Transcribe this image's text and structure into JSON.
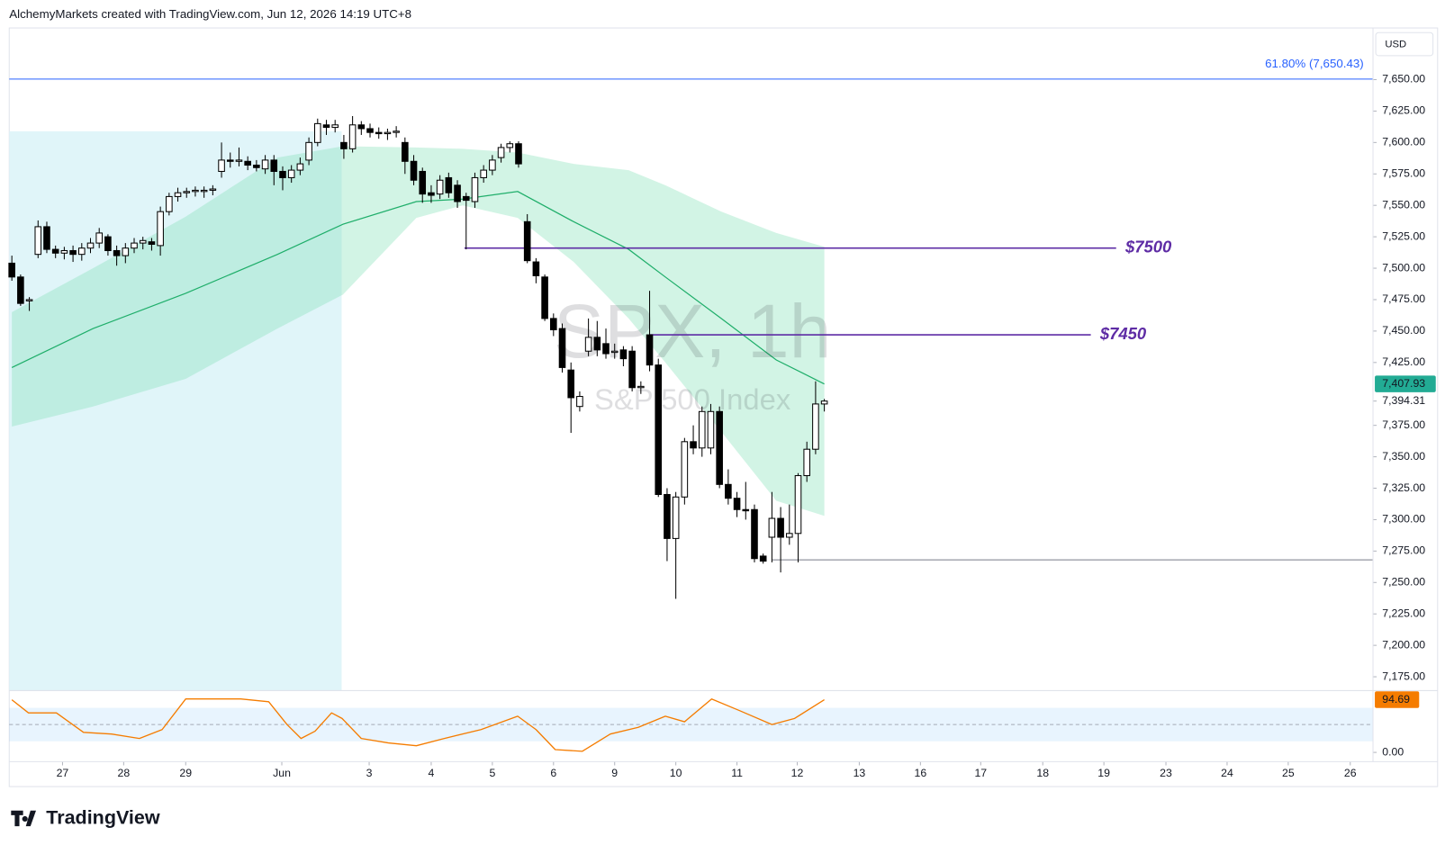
{
  "header": "AlchemyMarkets created with TradingView.com, Jun 12, 2026 14:19 UTC+8",
  "brand": "TradingView",
  "currency": "USD",
  "watermark": {
    "symbol": "SPX, 1h",
    "name": "S&P 500 Index"
  },
  "chart_data": {
    "type": "candlestick",
    "xlim": [
      -0.3,
      155.8
    ],
    "xticks": [
      {
        "value": 5.8,
        "label": "27"
      },
      {
        "value": 12.8,
        "label": "28"
      },
      {
        "value": 19.9,
        "label": "29"
      },
      {
        "value": 30.9,
        "label": "Jun"
      },
      {
        "value": 40.9,
        "label": "3"
      },
      {
        "value": 48.0,
        "label": "4"
      },
      {
        "value": 55.0,
        "label": "5"
      },
      {
        "value": 62.0,
        "label": "6"
      },
      {
        "value": 69.0,
        "label": "9"
      },
      {
        "value": 76.0,
        "label": "10"
      },
      {
        "value": 83.0,
        "label": "11"
      },
      {
        "value": 89.9,
        "label": "12"
      },
      {
        "value": 97.0,
        "label": "13"
      },
      {
        "value": 104.0,
        "label": "16"
      },
      {
        "value": 110.9,
        "label": "17"
      },
      {
        "value": 118.0,
        "label": "18"
      },
      {
        "value": 125.0,
        "label": "19"
      },
      {
        "value": 132.1,
        "label": "23"
      },
      {
        "value": 139.1,
        "label": "24"
      },
      {
        "value": 146.1,
        "label": "25"
      },
      {
        "value": 153.2,
        "label": "26"
      }
    ],
    "ylim": [
      7164,
      7691.1
    ],
    "yticks": [
      {
        "value": 7175,
        "label": "7,175.00"
      },
      {
        "value": 7200,
        "label": "7,200.00"
      },
      {
        "value": 7225,
        "label": "7,225.00"
      },
      {
        "value": 7250,
        "label": "7,250.00"
      },
      {
        "value": 7275,
        "label": "7,275.00"
      },
      {
        "value": 7300,
        "label": "7,300.00"
      },
      {
        "value": 7325,
        "label": "7,325.00"
      },
      {
        "value": 7350,
        "label": "7,350.00"
      },
      {
        "value": 7375,
        "label": "7,375.00"
      },
      {
        "value": 7425,
        "label": "7,425.00"
      },
      {
        "value": 7450,
        "label": "7,450.00"
      },
      {
        "value": 7475,
        "label": "7,475.00"
      },
      {
        "value": 7500,
        "label": "7,500.00"
      },
      {
        "value": 7525,
        "label": "7,525.00"
      },
      {
        "value": 7550,
        "label": "7,550.00"
      },
      {
        "value": 7575,
        "label": "7,575.00"
      },
      {
        "value": 7600,
        "label": "7,600.00"
      },
      {
        "value": 7625,
        "label": "7,625.00"
      },
      {
        "value": 7650,
        "label": "7,650.00"
      }
    ],
    "open": [
      7504,
      7493,
      7474,
      7511,
      7533,
      7515,
      7512,
      7514,
      7511,
      7516,
      7520,
      7525,
      7514,
      7510,
      7516,
      7520,
      7521,
      7518,
      7545,
      7557,
      7560,
      7561,
      7561,
      7562,
      7577,
      7586,
      7585,
      7585,
      7582,
      7579,
      7586,
      7577,
      7572,
      7578,
      7586,
      7600,
      7614,
      7612,
      7600,
      7595,
      7614,
      7611,
      7608,
      7607,
      7608,
      7600,
      7585,
      7577,
      7560,
      7559,
      7572,
      7566,
      7557,
      7553,
      7572,
      7578,
      7588,
      7596,
      7599,
      7537,
      7505,
      7493,
      7460,
      7452,
      7419,
      7390,
      7434,
      7445,
      7440,
      7433,
      7435,
      7434,
      7405,
      7447,
      7423,
      7320,
      7285,
      7318,
      7362,
      7357,
      7357,
      7386,
      7328,
      7317,
      7308,
      7308,
      7271,
      7286,
      7301,
      7286,
      7289,
      7335,
      7356,
      7392
    ],
    "high": [
      7510,
      7495,
      7477,
      7538,
      7537,
      7518,
      7517,
      7518,
      7520,
      7524,
      7532,
      7527,
      7518,
      7520,
      7524,
      7525,
      7524,
      7549,
      7560,
      7564,
      7564,
      7565,
      7565,
      7566,
      7600,
      7592,
      7596,
      7589,
      7586,
      7590,
      7590,
      7581,
      7582,
      7588,
      7604,
      7619,
      7618,
      7618,
      7606,
      7621,
      7617,
      7615,
      7612,
      7611,
      7613,
      7604,
      7590,
      7580,
      7566,
      7574,
      7576,
      7570,
      7560,
      7576,
      7582,
      7590,
      7599,
      7601,
      7601,
      7543,
      7508,
      7495,
      7464,
      7456,
      7425,
      7402,
      7460,
      7458,
      7452,
      7440,
      7438,
      7438,
      7410,
      7482,
      7428,
      7325,
      7322,
      7365,
      7375,
      7390,
      7392,
      7390,
      7340,
      7322,
      7330,
      7312,
      7273,
      7322,
      7310,
      7312,
      7337,
      7362,
      7410,
      7396
    ],
    "low": [
      7490,
      7470,
      7466,
      7508,
      7512,
      7508,
      7507,
      7505,
      7506,
      7512,
      7516,
      7510,
      7502,
      7504,
      7512,
      7515,
      7514,
      7510,
      7542,
      7553,
      7556,
      7557,
      7556,
      7558,
      7572,
      7580,
      7581,
      7578,
      7577,
      7575,
      7566,
      7562,
      7568,
      7574,
      7582,
      7597,
      7606,
      7608,
      7587,
      7592,
      7606,
      7604,
      7603,
      7602,
      7604,
      7575,
      7566,
      7552,
      7552,
      7555,
      7556,
      7548,
      7515,
      7548,
      7568,
      7574,
      7584,
      7592,
      7580,
      7504,
      7488,
      7458,
      7446,
      7417,
      7369,
      7386,
      7430,
      7430,
      7428,
      7428,
      7422,
      7402,
      7400,
      7418,
      7318,
      7267,
      7237,
      7312,
      7352,
      7350,
      7352,
      7325,
      7312,
      7302,
      7300,
      7266,
      7265,
      7266,
      7258,
      7280,
      7266,
      7330,
      7352,
      7386
    ],
    "close": [
      7493,
      7472,
      7475,
      7533,
      7515,
      7512,
      7514,
      7511,
      7516,
      7520,
      7528,
      7514,
      7510,
      7516,
      7520,
      7522,
      7519,
      7545,
      7557,
      7560,
      7561,
      7562,
      7562,
      7563,
      7586,
      7585,
      7586,
      7582,
      7580,
      7586,
      7577,
      7572,
      7578,
      7583,
      7600,
      7615,
      7612,
      7614,
      7595,
      7614,
      7611,
      7608,
      7607,
      7608,
      7609,
      7585,
      7570,
      7559,
      7558,
      7570,
      7560,
      7553,
      7554,
      7572,
      7578,
      7586,
      7596,
      7599,
      7583,
      7506,
      7494,
      7460,
      7451,
      7421,
      7397,
      7398,
      7445,
      7435,
      7432,
      7434,
      7428,
      7405,
      7406,
      7423,
      7320,
      7285,
      7318,
      7362,
      7357,
      7386,
      7386,
      7328,
      7317,
      7308,
      7307,
      7269,
      7267,
      7301,
      7286,
      7289,
      7335,
      7356,
      7392,
      7394.31
    ],
    "up_color": "#ffffff",
    "down_color": "#000000",
    "indicator": {
      "x": [
        0,
        9.3,
        19.9,
        30.4,
        37.9,
        46.3,
        51.6,
        57.9,
        64.3,
        70.6,
        74.8,
        81.2,
        87.5,
        93
      ],
      "ma": [
        7421,
        7452,
        7480,
        7511,
        7535,
        7553,
        7555,
        7561,
        7537,
        7515,
        7493,
        7460,
        7427,
        7407.93
      ],
      "upper": [
        7465,
        7500,
        7541,
        7588,
        7597,
        7596,
        7595,
        7592,
        7583,
        7578,
        7566,
        7545,
        7528,
        7517
      ],
      "lower": [
        7374,
        7390,
        7412,
        7452,
        7479,
        7540,
        7550,
        7540,
        7505,
        7460,
        7425,
        7370,
        7315,
        7303
      ],
      "ma_color": "#1fae6a",
      "band_color": "#7fe0b4"
    },
    "price_markers": [
      {
        "value": 7407.93,
        "label": "7,407.93",
        "color": "#22ab94"
      },
      {
        "value": 7394.31,
        "label": "7,394.31"
      }
    ],
    "levels": [
      {
        "value": 7650.43,
        "label": "61.80% (7,650.43)",
        "color": "#2962ff",
        "from": -0.3,
        "to": 155.8
      },
      {
        "value": 7516,
        "label": "$7500",
        "color": "#5e2ca5",
        "from": 51.8,
        "to": 126.4
      },
      {
        "value": 7447,
        "label": "$7450",
        "color": "#5e2ca5",
        "from": 73,
        "to": 123.5
      },
      {
        "value": 7268,
        "color": "#787b86",
        "from": 87,
        "to": 155.8
      }
    ],
    "oscillator": {
      "x": [
        0,
        1.9,
        5.1,
        8.2,
        11.4,
        14.6,
        17.2,
        19.9,
        23,
        26.2,
        29.4,
        31.5,
        33.1,
        34.7,
        36.6,
        37.8,
        40,
        43.1,
        46.3,
        49.5,
        53.7,
        57.9,
        60,
        62.2,
        65.3,
        68.5,
        71.7,
        74.8,
        77,
        80.1,
        83.3,
        87,
        89.6,
        93
      ],
      "values": [
        94.5,
        71,
        71,
        36,
        33,
        25,
        41,
        96,
        96,
        96,
        91,
        50,
        25,
        38,
        71,
        61,
        25,
        17,
        12,
        25,
        41,
        65,
        41,
        5,
        2,
        33,
        45,
        65,
        55,
        96,
        75,
        50,
        61,
        94.69
      ],
      "value_label": "94.69",
      "color": "#f57c00",
      "ylim": [
        -10,
        110
      ],
      "yticks": [
        {
          "value": 0,
          "label": "0.00"
        }
      ],
      "band": [
        20,
        80
      ]
    }
  }
}
